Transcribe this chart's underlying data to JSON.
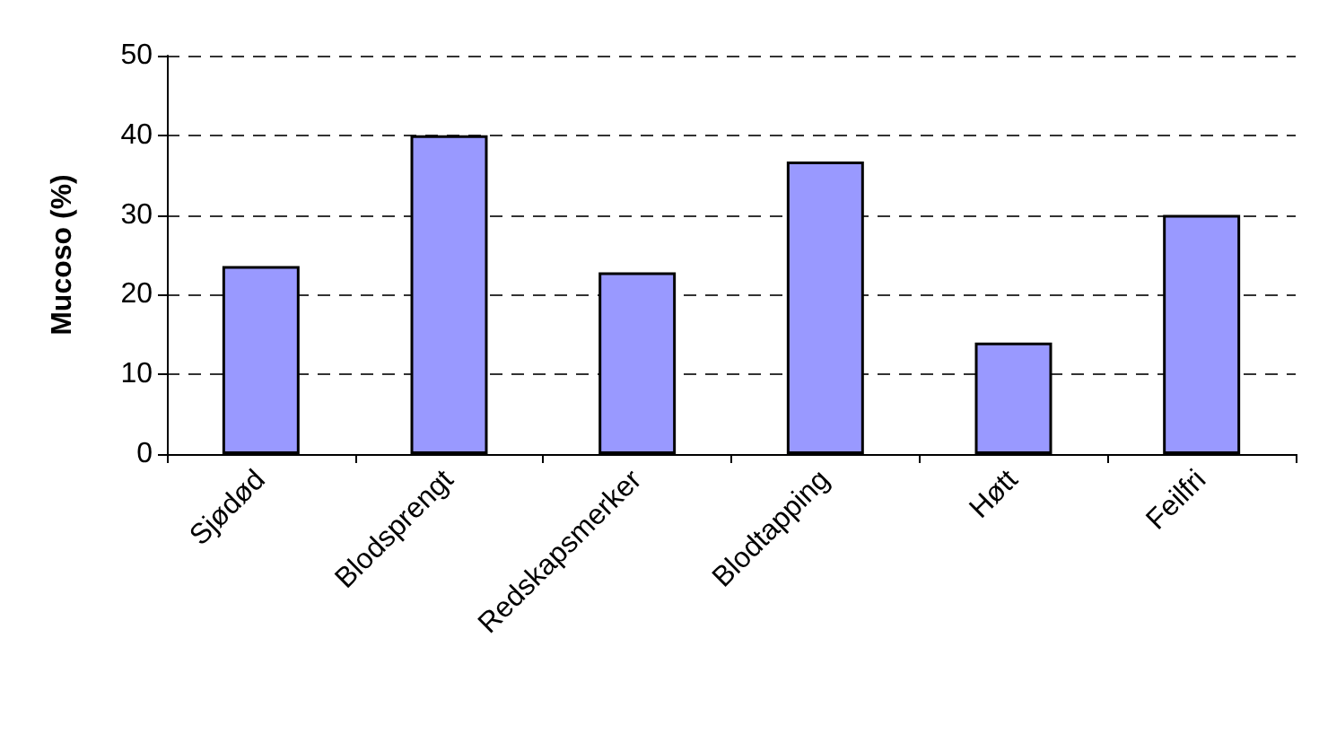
{
  "chart_data": {
    "type": "bar",
    "ylabel": "Mucoso (%)",
    "categories": [
      "Sjødød",
      "Blodsprengt",
      "Redskapsmerker",
      "Blodtapping",
      "Høtt",
      "Feilfri"
    ],
    "values": [
      23.6,
      40,
      22.8,
      36.7,
      14,
      30
    ],
    "color": "#9999ff",
    "ylim": [
      0,
      50
    ],
    "yticks": [
      0,
      10,
      20,
      30,
      40,
      50
    ],
    "grid": "y"
  }
}
